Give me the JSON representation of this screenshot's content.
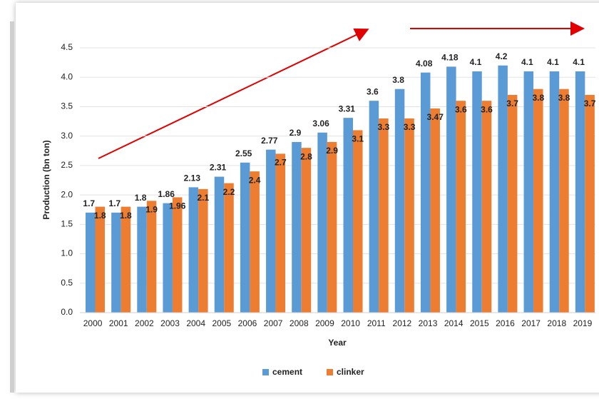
{
  "chart_data": {
    "type": "bar",
    "x_label": "Year",
    "y_label": "Production (bn ton)",
    "categories": [
      "2000",
      "2001",
      "2002",
      "2003",
      "2004",
      "2005",
      "2006",
      "2007",
      "2008",
      "2009",
      "2010",
      "2011",
      "2012",
      "2013",
      "2014",
      "2015",
      "2016",
      "2017",
      "2018",
      "2019"
    ],
    "series": [
      {
        "name": "cement",
        "color": "#5b9bd5",
        "values": [
          1.7,
          1.7,
          1.8,
          1.86,
          2.13,
          2.31,
          2.55,
          2.77,
          2.9,
          3.06,
          3.31,
          3.6,
          3.8,
          4.08,
          4.18,
          4.1,
          4.2,
          4.1,
          4.1,
          4.1
        ]
      },
      {
        "name": "clinker",
        "color": "#ed7d31",
        "values": [
          1.8,
          1.8,
          1.9,
          1.96,
          2.1,
          2.2,
          2.4,
          2.7,
          2.8,
          2.9,
          3.1,
          3.3,
          3.3,
          3.47,
          3.6,
          3.6,
          3.7,
          3.8,
          3.8,
          3.7
        ]
      }
    ],
    "ylim": [
      0,
      4.5
    ],
    "yticks": [
      {
        "value": 0,
        "label": "0.0"
      },
      0.5,
      {
        "value": 1,
        "label": "1.0"
      },
      1.5,
      {
        "value": 2,
        "label": "2.0"
      },
      2.5,
      {
        "value": 3,
        "label": "3.0"
      },
      3.5,
      {
        "value": 4,
        "label": "4.0"
      },
      4.5
    ],
    "grid": true,
    "legend": "bottom"
  }
}
